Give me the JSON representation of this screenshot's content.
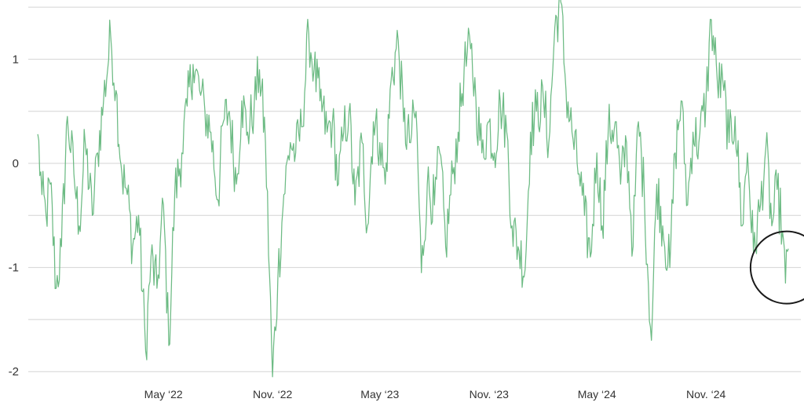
{
  "chart_data": {
    "type": "line",
    "title": "",
    "xlabel": "",
    "ylabel": "",
    "ylim": [
      -2.1,
      1.55
    ],
    "xlim": [
      "2021-09-15",
      "2025-04-10"
    ],
    "yticks": [
      1,
      0,
      -1,
      -2
    ],
    "ytick_labels": [
      "1",
      "0",
      "-1",
      "-2"
    ],
    "xticks": [
      "2022-05-01",
      "2022-11-01",
      "2023-05-01",
      "2023-11-01",
      "2024-05-01",
      "2024-11-01"
    ],
    "xtick_labels": [
      "May ‘22",
      "Nov. ‘22",
      "May ‘23",
      "Nov. ‘23",
      "May ‘24",
      "Nov. ‘24"
    ],
    "grid": true,
    "line_color": "#6dbb84",
    "annotation": {
      "type": "circle",
      "x": "2025-03-17",
      "y": -1.0,
      "color": "#1a1a1a"
    },
    "series": [
      {
        "x": [
          "2021-10-01",
          "2021-10-08",
          "2021-10-15",
          "2021-10-22",
          "2021-11-01",
          "2021-11-10",
          "2021-11-20",
          "2021-12-01",
          "2021-12-10",
          "2021-12-20",
          "2022-01-01",
          "2022-01-10",
          "2022-01-20",
          "2022-02-01",
          "2022-02-10",
          "2022-02-20",
          "2022-03-01",
          "2022-03-10",
          "2022-03-20",
          "2022-04-01",
          "2022-04-10",
          "2022-04-20",
          "2022-05-01",
          "2022-05-10",
          "2022-05-20",
          "2022-06-01",
          "2022-06-10",
          "2022-06-20",
          "2022-07-01",
          "2022-07-10",
          "2022-07-20",
          "2022-08-01",
          "2022-08-10",
          "2022-08-20",
          "2022-09-01",
          "2022-09-10",
          "2022-09-20",
          "2022-10-01",
          "2022-10-10",
          "2022-10-20",
          "2022-11-01",
          "2022-11-10",
          "2022-11-20",
          "2022-12-01",
          "2022-12-10",
          "2022-12-20",
          "2023-01-01",
          "2023-01-10",
          "2023-01-20",
          "2023-02-01",
          "2023-02-10",
          "2023-02-20",
          "2023-03-01",
          "2023-03-10",
          "2023-03-20",
          "2023-04-01",
          "2023-04-10",
          "2023-04-20",
          "2023-05-01",
          "2023-05-10",
          "2023-05-20",
          "2023-06-01",
          "2023-06-10",
          "2023-06-20",
          "2023-07-01",
          "2023-07-10",
          "2023-07-20",
          "2023-08-01",
          "2023-08-10",
          "2023-08-20",
          "2023-09-01",
          "2023-09-10",
          "2023-09-20",
          "2023-10-01",
          "2023-10-10",
          "2023-10-20",
          "2023-11-01",
          "2023-11-10",
          "2023-11-20",
          "2023-12-01",
          "2023-12-10",
          "2023-12-20",
          "2024-01-01",
          "2024-01-10",
          "2024-01-20",
          "2024-02-01",
          "2024-02-10",
          "2024-02-20",
          "2024-03-01",
          "2024-03-10",
          "2024-03-20",
          "2024-04-01",
          "2024-04-10",
          "2024-04-20",
          "2024-05-01",
          "2024-05-10",
          "2024-05-20",
          "2024-06-01",
          "2024-06-10",
          "2024-06-20",
          "2024-07-01",
          "2024-07-10",
          "2024-07-20",
          "2024-08-01",
          "2024-08-10",
          "2024-08-20",
          "2024-09-01",
          "2024-09-10",
          "2024-09-20",
          "2024-10-01",
          "2024-10-10",
          "2024-10-20",
          "2024-11-01",
          "2024-11-10",
          "2024-11-20",
          "2024-12-01",
          "2024-12-10",
          "2024-12-20",
          "2025-01-01",
          "2025-01-10",
          "2025-01-20",
          "2025-02-01",
          "2025-02-10",
          "2025-02-20",
          "2025-03-01",
          "2025-03-10",
          "2025-03-15",
          "2025-03-20"
        ],
        "values": [
          0.28,
          -0.3,
          -0.5,
          -0.2,
          -1.2,
          -0.8,
          0.45,
          -0.1,
          -0.6,
          0.2,
          -0.5,
          0.1,
          0.6,
          1.22,
          0.7,
          -0.1,
          -0.3,
          -0.8,
          -0.5,
          -1.8,
          -0.9,
          -1.2,
          -0.4,
          -1.75,
          -0.3,
          0.1,
          0.55,
          0.95,
          0.7,
          0.5,
          0.3,
          -0.35,
          0.4,
          0.5,
          -0.2,
          0.6,
          0.3,
          0.55,
          0.9,
          0.2,
          -2.05,
          -1.1,
          -0.3,
          0.2,
          0.1,
          0.35,
          1.25,
          0.9,
          0.6,
          0.3,
          0.4,
          -0.2,
          0.3,
          0.5,
          -0.4,
          0.2,
          -0.6,
          0.4,
          0.2,
          -0.2,
          0.8,
          1.18,
          0.4,
          0.2,
          0.5,
          -1.05,
          -0.2,
          -0.4,
          0.1,
          -0.8,
          -0.1,
          0.3,
          0.9,
          1.1,
          0.6,
          0.1,
          0.4,
          0.1,
          0.6,
          0.3,
          -0.6,
          -0.8,
          -1.02,
          0.3,
          0.5,
          0.6,
          0.2,
          1.3,
          1.55,
          0.7,
          0.3,
          -0.1,
          -0.5,
          -0.9,
          0.1,
          -0.6,
          0.3,
          0.4,
          -0.2,
          0.2,
          -0.8,
          0.4,
          -0.3,
          -1.7,
          -0.2,
          -0.6,
          -1.0,
          0.1,
          0.6,
          -0.4,
          0.3,
          0.2,
          0.6,
          1.38,
          0.8,
          0.7,
          0.2,
          0.45,
          -0.6,
          0.1,
          -0.85,
          -0.4,
          0.15,
          -0.6,
          -0.25,
          -0.65,
          -1.15,
          -0.82
        ]
      }
    ]
  }
}
